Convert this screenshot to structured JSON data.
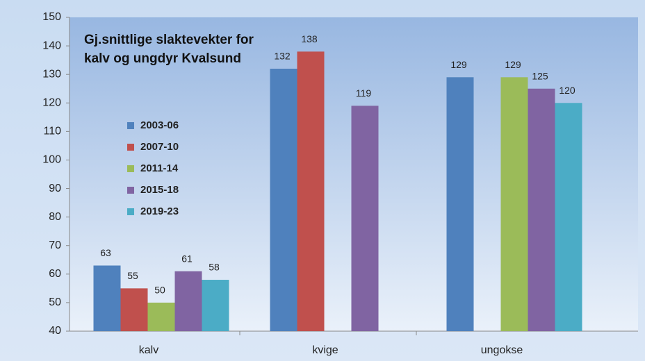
{
  "chart_data": {
    "type": "bar",
    "title": "Gj.snittlige slaktevekter for kalv og ungdyr Kvalsund",
    "categories": [
      "kalv",
      "kvige",
      "ungokse"
    ],
    "series": [
      {
        "name": "2003-06",
        "color": "#4f81bd",
        "values": [
          63,
          132,
          129
        ]
      },
      {
        "name": "2007-10",
        "color": "#c0504d",
        "values": [
          55,
          138,
          null
        ]
      },
      {
        "name": "2011-14",
        "color": "#9bbb59",
        "values": [
          50,
          null,
          129
        ]
      },
      {
        "name": "2015-18",
        "color": "#8064a2",
        "values": [
          61,
          119,
          125
        ]
      },
      {
        "name": "2019-23",
        "color": "#4bacc6",
        "values": [
          58,
          null,
          120
        ]
      }
    ],
    "ylim": [
      40,
      150
    ],
    "yticks": [
      40,
      50,
      60,
      70,
      80,
      90,
      100,
      110,
      120,
      130,
      140,
      150
    ],
    "grid": false,
    "legend": "left"
  }
}
